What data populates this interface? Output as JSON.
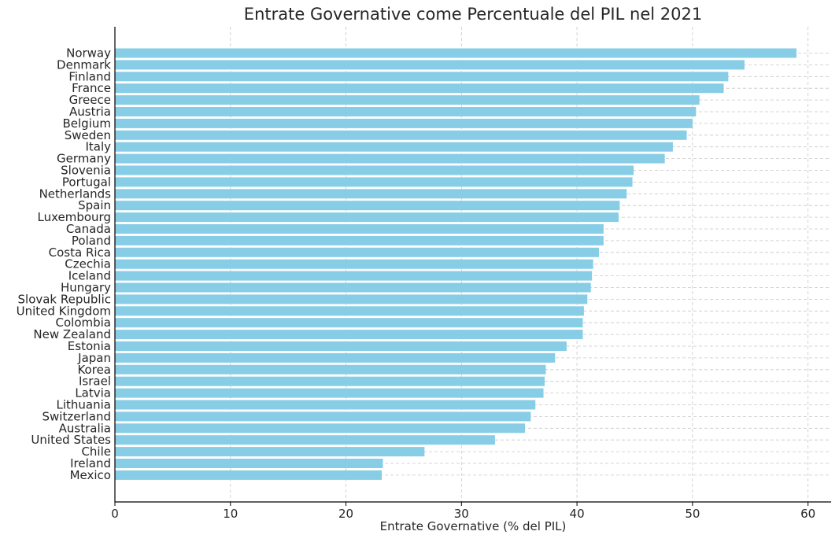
{
  "chart_data": {
    "type": "bar",
    "orientation": "horizontal",
    "title": "Entrate Governative come Percentuale del PIL nel 2021",
    "xlabel": "Entrate Governative (% del PIL)",
    "ylabel": "",
    "xlim": [
      0,
      62
    ],
    "xticks": [
      0,
      10,
      20,
      30,
      40,
      50,
      60
    ],
    "grid": true,
    "bar_color": "#87cde6",
    "categories": [
      "Norway",
      "Denmark",
      "Finland",
      "France",
      "Greece",
      "Austria",
      "Belgium",
      "Sweden",
      "Italy",
      "Germany",
      "Slovenia",
      "Portugal",
      "Netherlands",
      "Spain",
      "Luxembourg",
      "Canada",
      "Poland",
      "Costa Rica",
      "Czechia",
      "Iceland",
      "Hungary",
      "Slovak Republic",
      "United Kingdom",
      "Colombia",
      "New Zealand",
      "Estonia",
      "Japan",
      "Korea",
      "Israel",
      "Latvia",
      "Lithuania",
      "Switzerland",
      "Australia",
      "United States",
      "Chile",
      "Ireland",
      "Mexico"
    ],
    "values": [
      59.0,
      54.5,
      53.1,
      52.7,
      50.6,
      50.3,
      50.0,
      49.5,
      48.3,
      47.6,
      44.9,
      44.8,
      44.3,
      43.7,
      43.6,
      42.3,
      42.3,
      41.9,
      41.4,
      41.3,
      41.2,
      40.9,
      40.6,
      40.5,
      40.5,
      39.1,
      38.1,
      37.3,
      37.2,
      37.1,
      36.4,
      36.0,
      35.5,
      32.9,
      26.8,
      23.2,
      23.1
    ]
  }
}
